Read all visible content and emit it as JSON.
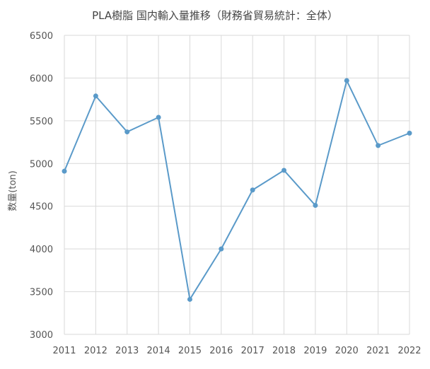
{
  "chart_data": {
    "type": "line",
    "title": "PLA樹脂 国内輸入量推移（財務省貿易統計：全体）",
    "xlabel": "",
    "ylabel": "数量(ton)",
    "categories": [
      "2011",
      "2012",
      "2013",
      "2014",
      "2015",
      "2016",
      "2017",
      "2018",
      "2019",
      "2020",
      "2021",
      "2022"
    ],
    "series": [
      {
        "values": [
          4910,
          5790,
          5370,
          5540,
          3410,
          4000,
          4690,
          4920,
          4510,
          5970,
          5210,
          5355
        ]
      }
    ],
    "ylim": [
      3000,
      6500
    ],
    "yticks": [
      "3000",
      "3500",
      "4000",
      "4500",
      "5000",
      "5500",
      "6000",
      "6500"
    ],
    "grid": true,
    "legend": "none",
    "colors": {
      "series": "#5a9ac9",
      "grid": "#d9d9d9"
    }
  }
}
